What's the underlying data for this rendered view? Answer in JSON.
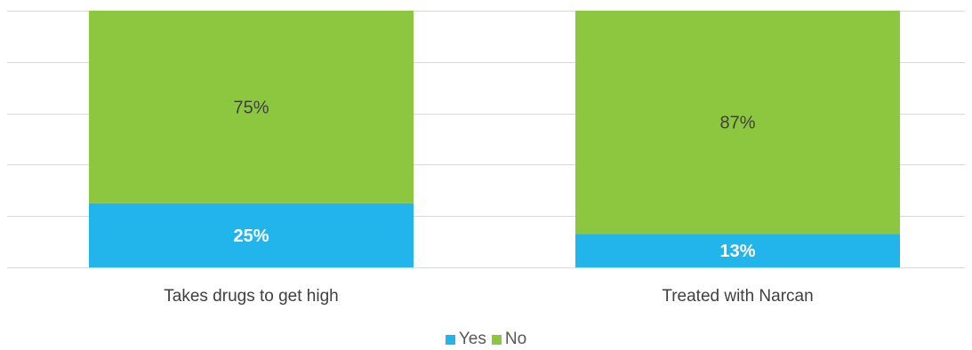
{
  "chart_data": {
    "type": "bar",
    "stacked": true,
    "percent_stacked": true,
    "categories": [
      "Takes drugs to get high",
      "Treated with Narcan"
    ],
    "series": [
      {
        "name": "Yes",
        "values": [
          25,
          13
        ],
        "labels": [
          "25%",
          "13%"
        ],
        "color": "#22B5EC",
        "label_color": "#ffffff",
        "label_bold": true
      },
      {
        "name": "No",
        "values": [
          75,
          87
        ],
        "labels": [
          "75%",
          "87%"
        ],
        "color": "#8DC63F",
        "label_color": "#404040",
        "label_bold": false
      }
    ],
    "ylim": [
      0,
      100
    ],
    "grid": true,
    "legend": "bottom"
  }
}
